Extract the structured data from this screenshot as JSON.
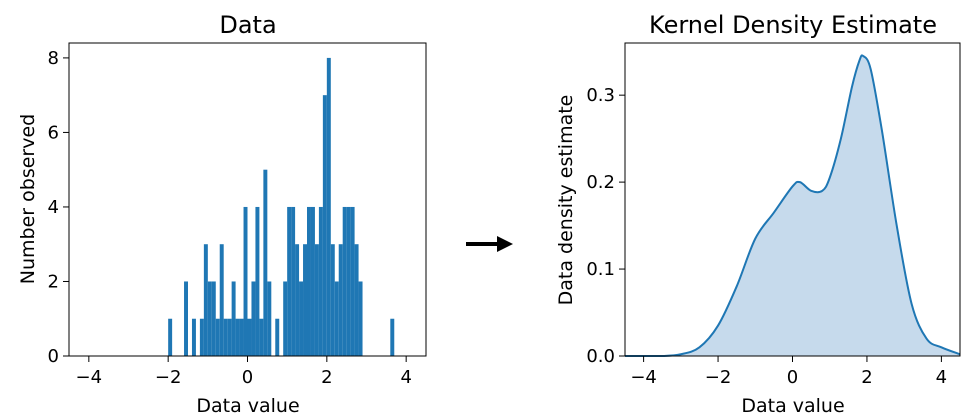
{
  "chart_data": [
    {
      "type": "bar",
      "title": "Data",
      "xlabel": "Data value",
      "ylabel": "Number observed",
      "xlim": [
        -4.5,
        4.5
      ],
      "ylim": [
        0,
        8.4
      ],
      "xticks": [
        -4,
        -2,
        0,
        2,
        4
      ],
      "xtick_labels": [
        "−4",
        "−2",
        "0",
        "2",
        "4"
      ],
      "yticks": [
        0,
        2,
        4,
        6,
        8
      ],
      "ytick_labels": [
        "0",
        "2",
        "4",
        "6",
        "8"
      ],
      "bin_width": 0.1,
      "bins": [
        [
          -2.0,
          1
        ],
        [
          -1.6,
          2
        ],
        [
          -1.4,
          1
        ],
        [
          -1.2,
          1
        ],
        [
          -1.1,
          3
        ],
        [
          -1.0,
          2
        ],
        [
          -0.9,
          2
        ],
        [
          -0.8,
          1
        ],
        [
          -0.7,
          3
        ],
        [
          -0.6,
          1
        ],
        [
          -0.5,
          1
        ],
        [
          -0.4,
          2
        ],
        [
          -0.3,
          1
        ],
        [
          -0.2,
          1
        ],
        [
          -0.1,
          4
        ],
        [
          0.0,
          1
        ],
        [
          0.1,
          2
        ],
        [
          0.2,
          4
        ],
        [
          0.3,
          1
        ],
        [
          0.4,
          5
        ],
        [
          0.5,
          2
        ],
        [
          0.7,
          1
        ],
        [
          0.9,
          2
        ],
        [
          1.0,
          4
        ],
        [
          1.1,
          4
        ],
        [
          1.2,
          3
        ],
        [
          1.3,
          2
        ],
        [
          1.4,
          3
        ],
        [
          1.5,
          4
        ],
        [
          1.6,
          4
        ],
        [
          1.7,
          3
        ],
        [
          1.8,
          4
        ],
        [
          1.9,
          7
        ],
        [
          2.0,
          8
        ],
        [
          2.1,
          3
        ],
        [
          2.2,
          2
        ],
        [
          2.3,
          3
        ],
        [
          2.4,
          4
        ],
        [
          2.5,
          4
        ],
        [
          2.6,
          4
        ],
        [
          2.7,
          3
        ],
        [
          2.8,
          2
        ],
        [
          3.6,
          1
        ]
      ],
      "color": "#1f77b4"
    },
    {
      "type": "area",
      "title": "Kernel Density Estimate",
      "xlabel": "Data value",
      "ylabel": "Data density estimate",
      "xlim": [
        -4.5,
        4.5
      ],
      "ylim": [
        0,
        0.36
      ],
      "xticks": [
        -4,
        -2,
        0,
        2,
        4
      ],
      "xtick_labels": [
        "−4",
        "−2",
        "0",
        "2",
        "4"
      ],
      "yticks": [
        0,
        0.1,
        0.2,
        0.3
      ],
      "ytick_labels": [
        "0.0",
        "0.1",
        "0.2",
        "0.3"
      ],
      "x": [
        -4.5,
        -3.5,
        -3.0,
        -2.5,
        -2.0,
        -1.5,
        -1.0,
        -0.5,
        0.0,
        0.2,
        0.5,
        0.8,
        1.0,
        1.3,
        1.6,
        1.8,
        1.9,
        2.1,
        2.4,
        2.8,
        3.2,
        3.6,
        4.0,
        4.5
      ],
      "y": [
        0.0,
        0.0,
        0.002,
        0.01,
        0.035,
        0.08,
        0.135,
        0.165,
        0.195,
        0.2,
        0.19,
        0.19,
        0.205,
        0.25,
        0.31,
        0.34,
        0.345,
        0.33,
        0.26,
        0.15,
        0.06,
        0.02,
        0.01,
        0.002
      ],
      "line_color": "#1f77b4",
      "fill_color": "#c6daec"
    }
  ],
  "arrow": "right-arrow"
}
